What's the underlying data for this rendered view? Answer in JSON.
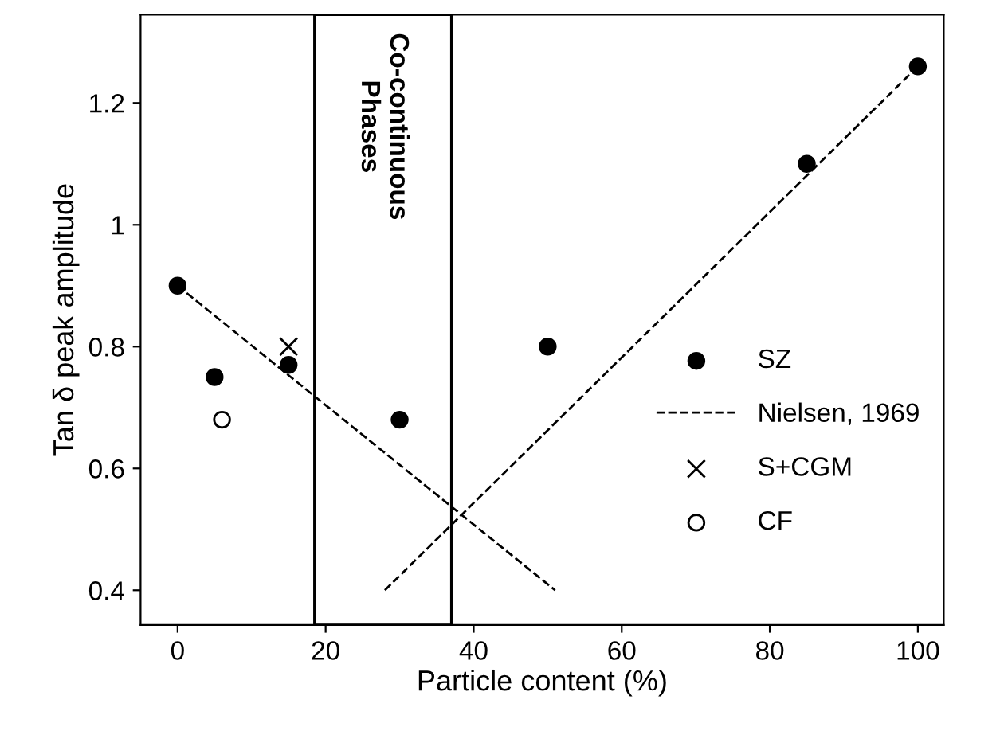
{
  "chart_data": {
    "type": "scatter",
    "xlabel": "Particle content (%)",
    "ylabel": "Tan δ peak amplitude",
    "xlim": [
      -5,
      103.5
    ],
    "ylim": [
      0.343,
      1.345
    ],
    "xticks": [
      0,
      20,
      40,
      60,
      80,
      100
    ],
    "yticks": [
      0.4,
      0.6,
      0.8,
      1,
      1.2
    ],
    "grid": false,
    "legend": "right",
    "series": [
      {
        "name": "SZ",
        "marker": "circle",
        "color": "#000000",
        "x": [
          0,
          5,
          15,
          30,
          50,
          85,
          100
        ],
        "values": [
          0.9,
          0.75,
          0.77,
          0.68,
          0.8,
          1.1,
          1.26
        ]
      },
      {
        "name": "Nielsen, 1969",
        "type": "line",
        "marker": "none",
        "line_style": "dashed",
        "color": "#000000",
        "x": [
          0,
          51
        ],
        "values": [
          0.9,
          0.4
        ]
      },
      {
        "type": "line",
        "marker": "none",
        "line_style": "dashed",
        "color": "#000000",
        "x": [
          28,
          100
        ],
        "values": [
          0.4,
          1.26
        ]
      },
      {
        "name": "S+CGM",
        "marker": "cross",
        "color": "#000000",
        "x": [
          15
        ],
        "values": [
          0.8
        ]
      },
      {
        "name": "CF",
        "marker": "circle",
        "color": "#ffffff",
        "x": [
          6
        ],
        "values": [
          0.68
        ]
      }
    ],
    "bands": [
      {
        "axis": "x",
        "from": 18.5,
        "to": 37,
        "label": "Co-continuous\nPhases",
        "color": "#ffffff"
      }
    ]
  }
}
